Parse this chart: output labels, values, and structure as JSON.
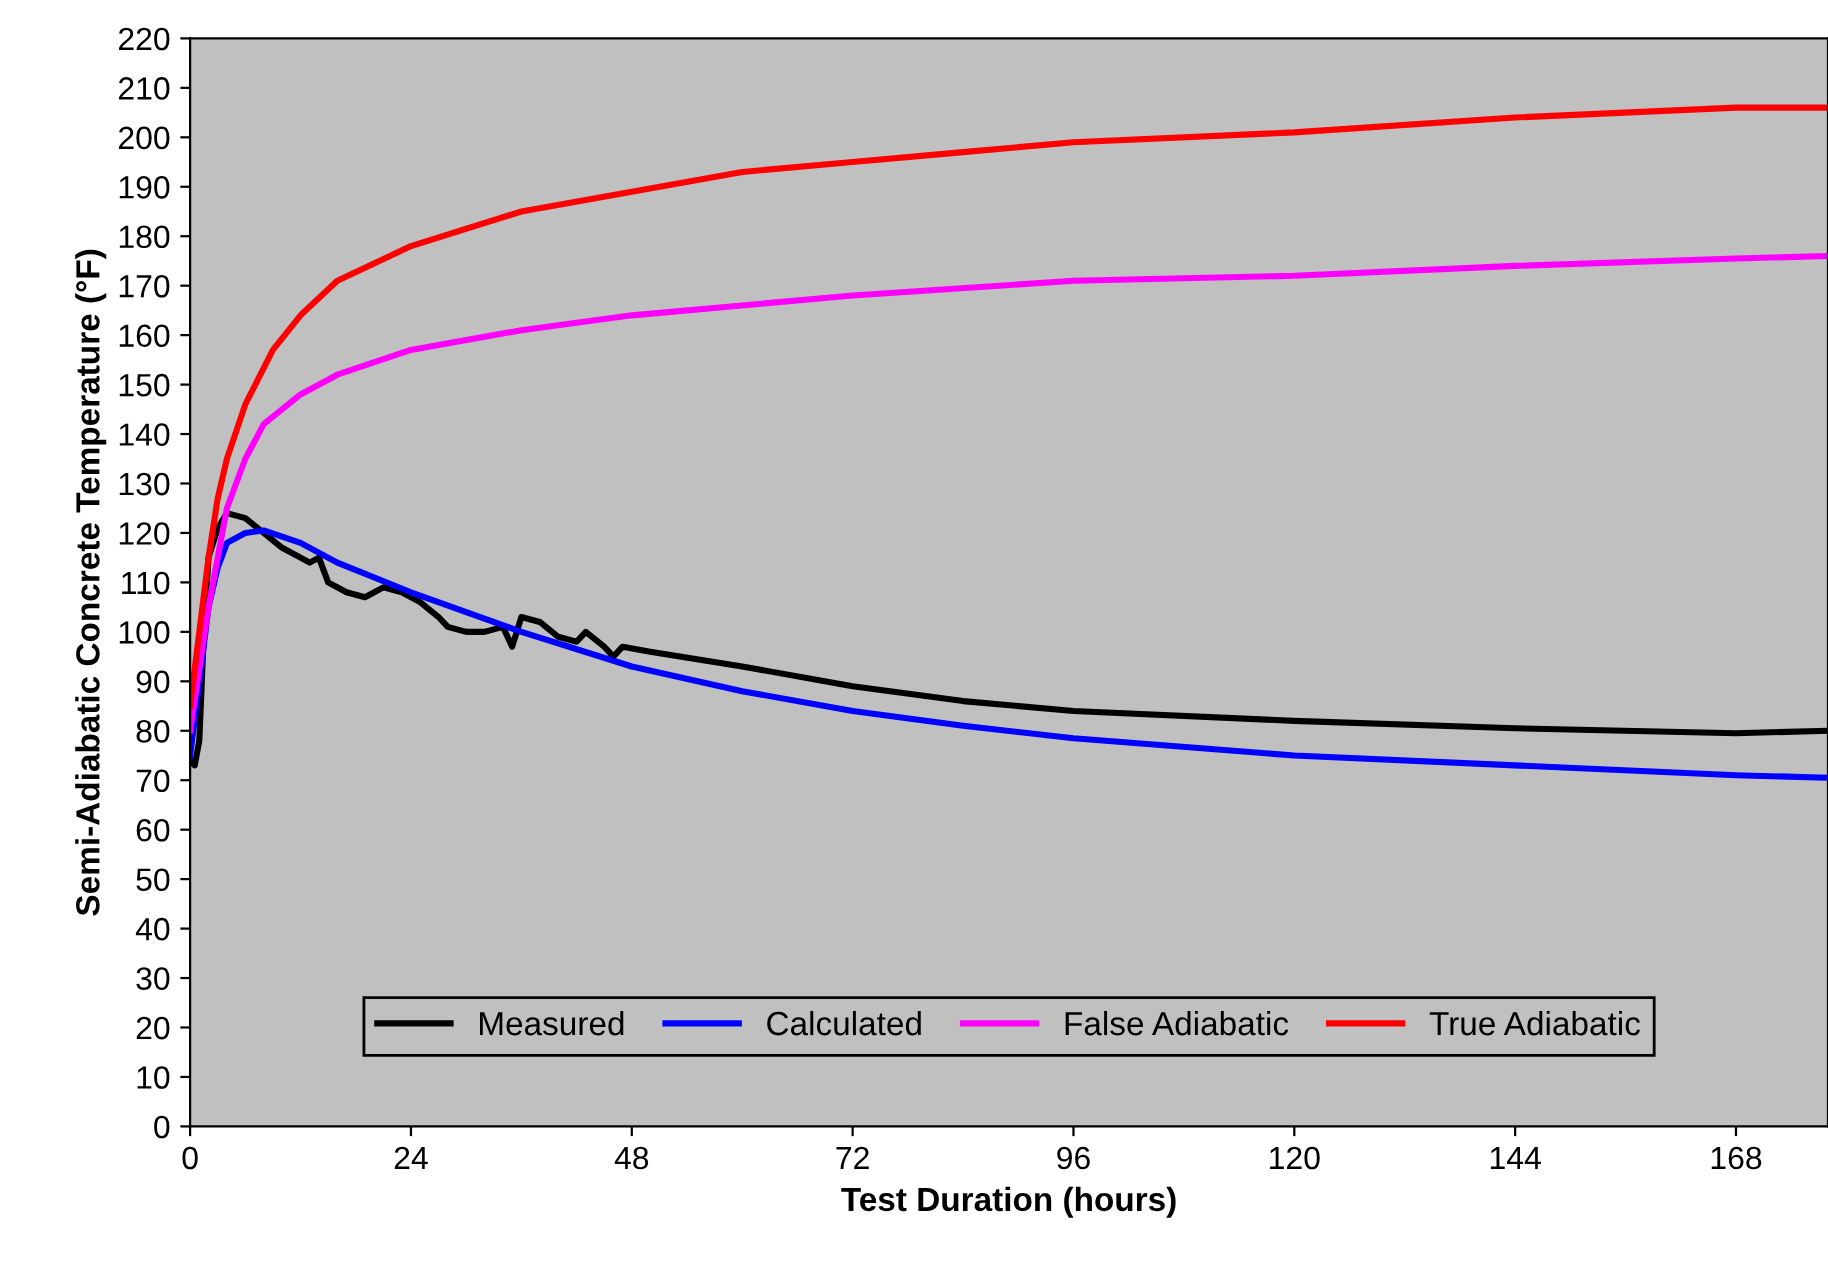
{
  "chart_data": {
    "type": "line",
    "xlabel": "Test Duration (hours)",
    "ylabel": "Semi-Adiabatic Concrete Temperature (°F)",
    "xlim": [
      0,
      178
    ],
    "xticks": [
      0,
      24,
      48,
      72,
      96,
      120,
      144,
      168
    ],
    "ylim": [
      0,
      220
    ],
    "yticks": [
      0,
      10,
      20,
      30,
      40,
      50,
      60,
      70,
      80,
      90,
      100,
      110,
      120,
      130,
      140,
      150,
      160,
      170,
      180,
      190,
      200,
      210,
      220
    ],
    "grid": false,
    "legend": "bottom",
    "marker": "none",
    "line_style": "solid",
    "series": [
      {
        "name": "Measured",
        "color": "#000000",
        "x": [
          0,
          0.5,
          1,
          1.5,
          2,
          3,
          4,
          6,
          8,
          10,
          12,
          13,
          14,
          15,
          17,
          19,
          21,
          23,
          25,
          27,
          28,
          30,
          32,
          34,
          35,
          36,
          38,
          40,
          42,
          43,
          45,
          46,
          47,
          50,
          60,
          72,
          84,
          96,
          120,
          144,
          168,
          178
        ],
        "values": [
          74,
          73,
          78,
          100,
          115,
          121,
          124,
          123,
          120,
          117,
          115,
          114,
          115,
          110,
          108,
          107,
          109,
          108,
          106,
          103,
          101,
          100,
          100,
          101,
          97,
          103,
          102,
          99,
          98,
          100,
          97,
          95,
          97,
          96,
          93,
          89,
          86,
          84,
          82,
          80.5,
          79.5,
          80
        ]
      },
      {
        "name": "Calculated",
        "color": "#0000ff",
        "x": [
          0,
          1,
          2,
          3,
          4,
          6,
          8,
          12,
          16,
          24,
          36,
          48,
          60,
          72,
          84,
          96,
          120,
          144,
          168,
          178
        ],
        "values": [
          75,
          90,
          105,
          113,
          118,
          120,
          120.5,
          118,
          114,
          108,
          100,
          93,
          88,
          84,
          81,
          78.5,
          75,
          73,
          71,
          70.5
        ]
      },
      {
        "name": "False Adiabatic",
        "color": "#ff00ff",
        "x": [
          0,
          2,
          4,
          6,
          8,
          12,
          16,
          24,
          36,
          48,
          72,
          96,
          120,
          144,
          168,
          178
        ],
        "values": [
          80,
          105,
          125,
          135,
          142,
          148,
          152,
          157,
          161,
          164,
          168,
          171,
          172,
          174,
          175.5,
          176
        ]
      },
      {
        "name": "True Adiabatic",
        "color": "#ff0000",
        "x": [
          0,
          1,
          2,
          3,
          4,
          6,
          9,
          12,
          16,
          24,
          36,
          48,
          60,
          72,
          84,
          96,
          120,
          144,
          168,
          178
        ],
        "values": [
          85,
          100,
          115,
          127,
          135,
          146,
          157,
          164,
          171,
          178,
          185,
          189,
          193,
          195,
          197,
          199,
          201,
          204,
          206,
          206
        ]
      }
    ]
  }
}
